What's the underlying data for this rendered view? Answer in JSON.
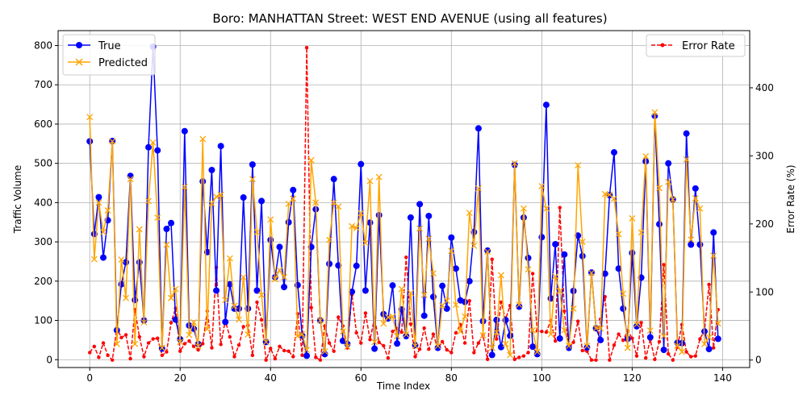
{
  "chart_data": {
    "type": "line",
    "title": "Boro: MANHATTAN Street: WEST END AVENUE (using all features)",
    "xlabel": "Time Index",
    "ylabel_left": "Traffic Volume",
    "ylabel_right": "Error Rate (%)",
    "xlim": [
      -7,
      146
    ],
    "ylim_left": [
      -20,
      838
    ],
    "ylim_right": [
      -11,
      484
    ],
    "xticks": [
      0,
      20,
      40,
      60,
      80,
      100,
      120,
      140
    ],
    "yticks_left": [
      0,
      100,
      200,
      300,
      400,
      500,
      600,
      700,
      800
    ],
    "yticks_right": [
      0,
      100,
      200,
      300,
      400
    ],
    "grid": true,
    "legend_left_position": "upper-left",
    "legend_right_position": "upper-right",
    "series": [
      {
        "name": "True",
        "axis": "left",
        "color": "#0000ff",
        "marker": "circle",
        "x": [
          0,
          1,
          2,
          3,
          4,
          5,
          6,
          7,
          8,
          9,
          10,
          11,
          12,
          13,
          14,
          15,
          16,
          17,
          18,
          19,
          20,
          21,
          22,
          23,
          24,
          25,
          26,
          27,
          28,
          29,
          30,
          31,
          32,
          33,
          34,
          35,
          36,
          37,
          38,
          39,
          40,
          41,
          42,
          43,
          44,
          45,
          46,
          47,
          48,
          49,
          50,
          51,
          52,
          53,
          54,
          55,
          56,
          57,
          58,
          59,
          60,
          61,
          62,
          63,
          64,
          65,
          66,
          67,
          68,
          69,
          70,
          71,
          72,
          73,
          74,
          75,
          76,
          77,
          78,
          79,
          80,
          81,
          82,
          83,
          84,
          85,
          86,
          87,
          88,
          89,
          90,
          91,
          92,
          93,
          94,
          95,
          96,
          97,
          98,
          99,
          100,
          101,
          102,
          103,
          104,
          105,
          106,
          107,
          108,
          109,
          110,
          111,
          112,
          113,
          114,
          115,
          116,
          117,
          118,
          119,
          120,
          121,
          122,
          123,
          124,
          125,
          126,
          127,
          128,
          129,
          130,
          131,
          132,
          133,
          134,
          135,
          136,
          137,
          138,
          139
        ],
        "values": [
          556,
          320,
          414,
          260,
          355,
          557,
          75,
          192,
          248,
          468,
          152,
          248,
          100,
          541,
          797,
          533,
          28,
          333,
          348,
          102,
          52,
          582,
          87,
          79,
          40,
          454,
          274,
          483,
          176,
          544,
          96,
          192,
          130,
          130,
          413,
          130,
          497,
          176,
          404,
          45,
          305,
          210,
          287,
          185,
          350,
          432,
          190,
          61,
          10,
          287,
          383,
          100,
          14,
          244,
          460,
          240,
          48,
          40,
          173,
          239,
          498,
          176,
          349,
          28,
          368,
          116,
          105,
          189,
          41,
          128,
          60,
          362,
          37,
          396,
          112,
          366,
          160,
          30,
          188,
          130,
          311,
          232,
          151,
          147,
          200,
          325,
          589,
          98,
          278,
          12,
          101,
          32,
          101,
          61,
          496,
          135,
          362,
          259,
          33,
          14,
          312,
          649,
          156,
          294,
          54,
          268,
          30,
          175,
          316,
          264,
          31,
          222,
          80,
          50,
          219,
          419,
          528,
          232,
          130,
          53,
          272,
          85,
          209,
          505,
          57,
          621,
          345,
          25,
          500,
          408,
          43,
          42,
          576,
          293,
          436,
          293,
          72,
          27,
          324,
          53
        ]
      },
      {
        "name": "Predicted",
        "axis": "left",
        "color": "#ffa500",
        "marker": "x",
        "x": [
          0,
          1,
          2,
          3,
          4,
          5,
          6,
          7,
          8,
          9,
          10,
          11,
          12,
          13,
          14,
          15,
          16,
          17,
          18,
          19,
          20,
          21,
          22,
          23,
          24,
          25,
          26,
          27,
          28,
          29,
          30,
          31,
          32,
          33,
          34,
          35,
          36,
          37,
          38,
          39,
          40,
          41,
          42,
          43,
          44,
          45,
          46,
          47,
          48,
          49,
          50,
          51,
          52,
          53,
          54,
          55,
          56,
          57,
          58,
          59,
          60,
          61,
          62,
          63,
          64,
          65,
          66,
          67,
          68,
          69,
          70,
          71,
          72,
          73,
          74,
          75,
          76,
          77,
          78,
          79,
          80,
          81,
          82,
          83,
          84,
          85,
          86,
          87,
          88,
          89,
          90,
          91,
          92,
          93,
          94,
          95,
          96,
          97,
          98,
          99,
          100,
          101,
          102,
          103,
          104,
          105,
          106,
          107,
          108,
          109,
          110,
          111,
          112,
          113,
          114,
          115,
          116,
          117,
          118,
          119,
          120,
          121,
          122,
          123,
          124,
          125,
          126,
          127,
          128,
          129,
          130,
          131,
          132,
          133,
          134,
          135,
          136,
          137,
          138,
          139
        ],
        "values": [
          618,
          256,
          400,
          325,
          380,
          556,
          40,
          255,
          157,
          460,
          40,
          332,
          95,
          404,
          553,
          362,
          30,
          293,
          157,
          180,
          45,
          440,
          63,
          95,
          34,
          562,
          78,
          398,
          415,
          420,
          152,
          258,
          137,
          102,
          210,
          64,
          460,
          325,
          165,
          45,
          357,
          205,
          228,
          210,
          397,
          410,
          60,
          65,
          25,
          508,
          400,
          100,
          21,
          305,
          400,
          390,
          72,
          33,
          340,
          335,
          373,
          297,
          455,
          45,
          465,
          92,
          108,
          110,
          60,
          180,
          64,
          170,
          35,
          334,
          165,
          308,
          220,
          35,
          138,
          150,
          277,
          140,
          72,
          110,
          374,
          290,
          436,
          62,
          275,
          30,
          70,
          215,
          40,
          12,
          500,
          140,
          385,
          230,
          75,
          20,
          442,
          385,
          65,
          212,
          175,
          75,
          35,
          130,
          495,
          300,
          35,
          221,
          80,
          80,
          422,
          420,
          410,
          320,
          168,
          30,
          360,
          90,
          324,
          518,
          74,
          630,
          437,
          60,
          453,
          408,
          35,
          20,
          510,
          306,
          411,
          385,
          40,
          57,
          265,
          92
        ]
      },
      {
        "name": "Error Rate",
        "axis": "right",
        "color": "#ff0000",
        "marker": "dot",
        "linestyle": "dashed",
        "x": [
          0,
          1,
          2,
          3,
          4,
          5,
          6,
          7,
          8,
          9,
          10,
          11,
          12,
          13,
          14,
          15,
          16,
          17,
          18,
          19,
          20,
          21,
          22,
          23,
          24,
          25,
          26,
          27,
          28,
          29,
          30,
          31,
          32,
          33,
          34,
          35,
          36,
          37,
          38,
          39,
          40,
          41,
          42,
          43,
          44,
          45,
          46,
          47,
          48,
          49,
          50,
          51,
          52,
          53,
          54,
          55,
          56,
          57,
          58,
          59,
          60,
          61,
          62,
          63,
          64,
          65,
          66,
          67,
          68,
          69,
          70,
          71,
          72,
          73,
          74,
          75,
          76,
          77,
          78,
          79,
          80,
          81,
          82,
          83,
          84,
          85,
          86,
          87,
          88,
          89,
          90,
          91,
          92,
          93,
          94,
          95,
          96,
          97,
          98,
          99,
          100,
          101,
          102,
          103,
          104,
          105,
          106,
          107,
          108,
          109,
          110,
          111,
          112,
          113,
          114,
          115,
          116,
          117,
          118,
          119,
          120,
          121,
          122,
          123,
          124,
          125,
          126,
          127,
          128,
          129,
          130,
          131,
          132,
          133,
          134,
          135,
          136,
          137,
          138,
          139
        ],
        "values": [
          11,
          20,
          4,
          25,
          7,
          0,
          47,
          33,
          37,
          2,
          74,
          34,
          5,
          25,
          31,
          32,
          7,
          12,
          55,
          76,
          13,
          24,
          28,
          20,
          15,
          24,
          72,
          18,
          136,
          23,
          58,
          34,
          5,
          22,
          49,
          51,
          7,
          85,
          59,
          0,
          17,
          2,
          20,
          14,
          13,
          5,
          68,
          7,
          459,
          77,
          4,
          0,
          50,
          25,
          13,
          63,
          50,
          18,
          96,
          40,
          25,
          69,
          30,
          62,
          26,
          21,
          3,
          42,
          46,
          41,
          151,
          53,
          5,
          16,
          47,
          16,
          38,
          17,
          27,
          15,
          11,
          40,
          52,
          25,
          87,
          11,
          25,
          37,
          1,
          148,
          31,
          85,
          60,
          80,
          1,
          4,
          6,
          11,
          127,
          43,
          42,
          41,
          58,
          28,
          224,
          72,
          17,
          26,
          57,
          14,
          13,
          0,
          0,
          60,
          93,
          0,
          22,
          38,
          29,
          43,
          32,
          6,
          55,
          3,
          30,
          1,
          27,
          140,
          9,
          0,
          19,
          52,
          12,
          5,
          6,
          31,
          44,
          111,
          18,
          74
        ]
      }
    ]
  }
}
